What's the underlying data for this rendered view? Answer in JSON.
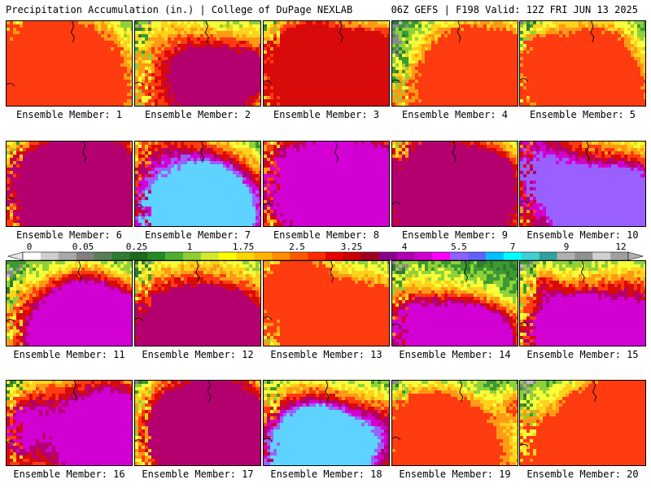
{
  "header": {
    "left": "Precipitation Accumulation (in.) | College of DuPage NEXLAB",
    "right": "06Z GEFS | F198 Valid: 12Z FRI JUN 13 2025"
  },
  "panels": [
    {
      "label": "Ensemble Member: 1"
    },
    {
      "label": "Ensemble Member: 2"
    },
    {
      "label": "Ensemble Member: 3"
    },
    {
      "label": "Ensemble Member: 4"
    },
    {
      "label": "Ensemble Member: 5"
    },
    {
      "label": "Ensemble Member: 6"
    },
    {
      "label": "Ensemble Member: 7"
    },
    {
      "label": "Ensemble Member: 8"
    },
    {
      "label": "Ensemble Member: 9"
    },
    {
      "label": "Ensemble Member: 10"
    },
    {
      "label": "Ensemble Member: 11"
    },
    {
      "label": "Ensemble Member: 12"
    },
    {
      "label": "Ensemble Member: 13"
    },
    {
      "label": "Ensemble Member: 14"
    },
    {
      "label": "Ensemble Member: 15"
    },
    {
      "label": "Ensemble Member: 16"
    },
    {
      "label": "Ensemble Member: 17"
    },
    {
      "label": "Ensemble Member: 18"
    },
    {
      "label": "Ensemble Member: 19"
    },
    {
      "label": "Ensemble Member: 20"
    }
  ],
  "color_scale": {
    "labels": [
      "0",
      "0.05",
      "0.25",
      "1",
      "1.75",
      "2.5",
      "3.25",
      "4",
      "5.5",
      "7",
      "9",
      "12"
    ],
    "colors": [
      "#ffffff",
      "#cfcfcf",
      "#a8a8a8",
      "#808080",
      "#5a7d5a",
      "#2e7d32",
      "#1b6b1b",
      "#228b22",
      "#4caf30",
      "#8ccf30",
      "#d4e830",
      "#ffff00",
      "#ffd700",
      "#ffb300",
      "#ff8c00",
      "#ff5a00",
      "#ff2a00",
      "#e60000",
      "#c80000",
      "#a00020",
      "#8b008b",
      "#b000b0",
      "#d000d0",
      "#ff00ff",
      "#9060ff",
      "#6060ff",
      "#00c0ff",
      "#00ffff",
      "#40d0d0",
      "#30a0a0",
      "#b0b0b0",
      "#909090",
      "#d0d0d0",
      "#a0a0a0"
    ]
  }
}
